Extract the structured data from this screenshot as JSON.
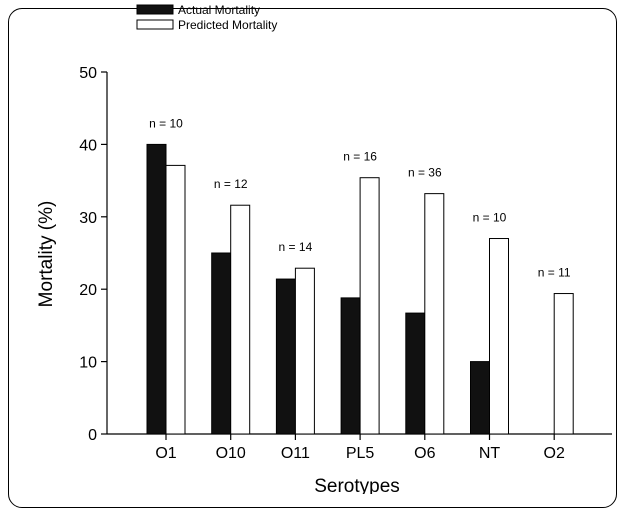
{
  "chart_data": {
    "type": "bar",
    "categories": [
      "O1",
      "O10",
      "O11",
      "PL5",
      "O6",
      "NT",
      "O2"
    ],
    "series": [
      {
        "name": "Actual Mortality",
        "values": [
          40,
          25,
          21.4,
          18.8,
          16.7,
          10,
          0
        ],
        "color": "#111111"
      },
      {
        "name": "Predicted Mortality",
        "values": [
          37.1,
          31.6,
          22.9,
          35.4,
          33.2,
          27,
          19.4
        ],
        "color": "#ffffff"
      }
    ],
    "annotations": [
      "n = 10",
      "n = 12",
      "n = 14",
      "n = 16",
      "n = 36",
      "n = 10",
      "n = 11"
    ],
    "xlabel": "Serotypes",
    "ylabel": "Mortality (%)",
    "ylim": [
      0,
      50
    ],
    "yticks": [
      0,
      10,
      20,
      30,
      40,
      50
    ],
    "grid": false,
    "legend": "top-left"
  }
}
